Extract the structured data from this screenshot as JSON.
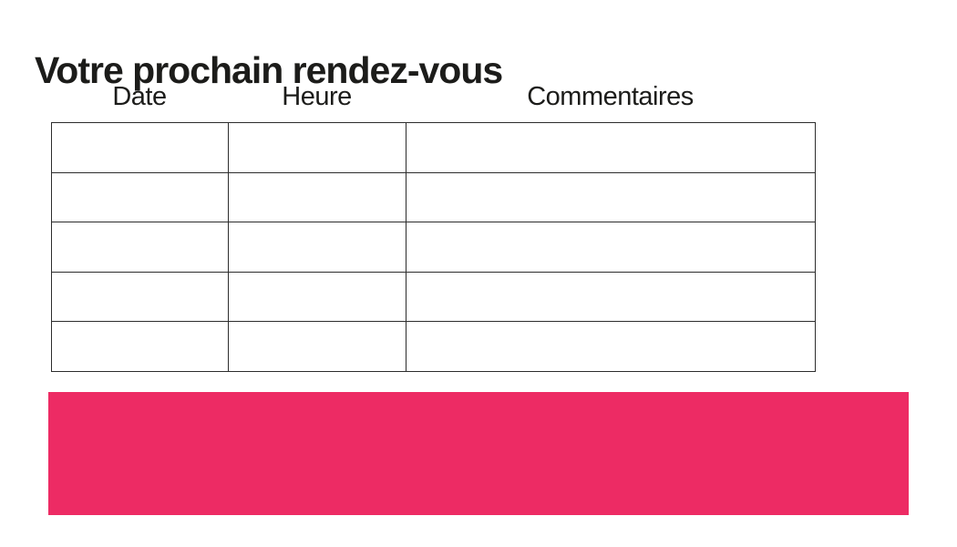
{
  "page": {
    "title": "Votre prochain rendez-vous"
  },
  "table": {
    "columns": [
      {
        "label": "Date"
      },
      {
        "label": "Heure"
      },
      {
        "label": "Commentaires"
      }
    ],
    "row_count": 5,
    "cells": [
      [
        "",
        "",
        ""
      ],
      [
        "",
        "",
        ""
      ],
      [
        "",
        "",
        ""
      ],
      [
        "",
        "",
        ""
      ],
      [
        "",
        "",
        ""
      ]
    ]
  },
  "banner": {
    "text": ""
  },
  "colors": {
    "background": "#ffffff",
    "text": "#1c1c1a",
    "table_border": "#2d2d2d",
    "accent_pink": "#ed2b64"
  }
}
